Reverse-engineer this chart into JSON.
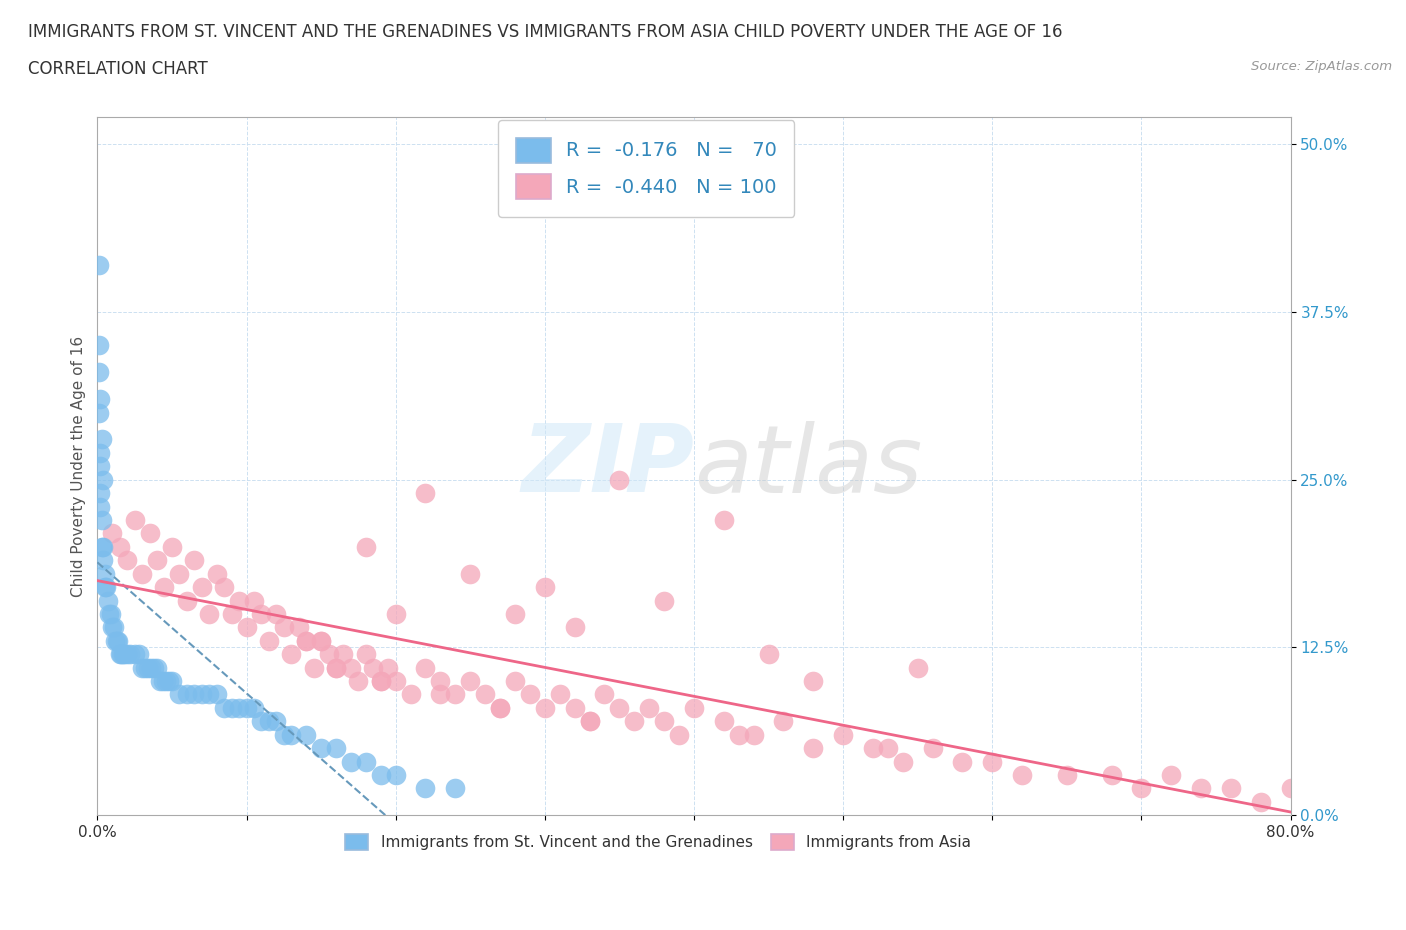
{
  "title_line1": "IMMIGRANTS FROM ST. VINCENT AND THE GRENADINES VS IMMIGRANTS FROM ASIA CHILD POVERTY UNDER THE AGE OF 16",
  "title_line2": "CORRELATION CHART",
  "source_text": "Source: ZipAtlas.com",
  "ylabel": "Child Poverty Under the Age of 16",
  "xlim": [
    0.0,
    0.8
  ],
  "ylim": [
    0.0,
    0.52
  ],
  "xticks": [
    0.0,
    0.1,
    0.2,
    0.3,
    0.4,
    0.5,
    0.6,
    0.7,
    0.8
  ],
  "xticklabels": [
    "0.0%",
    "",
    "",
    "",
    "",
    "",
    "",
    "",
    "80.0%"
  ],
  "yticks": [
    0.0,
    0.125,
    0.25,
    0.375,
    0.5
  ],
  "yticklabels": [
    "0.0%",
    "12.5%",
    "25.0%",
    "37.5%",
    "50.0%"
  ],
  "watermark_1": "ZIP",
  "watermark_2": "atlas",
  "legend_r1": "R =  -0.176   N =   70",
  "legend_r2": "R =  -0.440   N = 100",
  "color_blue": "#7bbcec",
  "color_pink": "#f4a7b9",
  "color_blue_line": "#6699bb",
  "color_pink_line": "#ee6688",
  "background_color": "#ffffff",
  "sv_scatter_x": [
    0.001,
    0.001,
    0.001,
    0.002,
    0.002,
    0.002,
    0.002,
    0.003,
    0.003,
    0.004,
    0.004,
    0.005,
    0.005,
    0.006,
    0.007,
    0.008,
    0.009,
    0.01,
    0.011,
    0.012,
    0.013,
    0.014,
    0.015,
    0.016,
    0.017,
    0.018,
    0.02,
    0.022,
    0.025,
    0.028,
    0.03,
    0.032,
    0.034,
    0.036,
    0.038,
    0.04,
    0.042,
    0.044,
    0.046,
    0.048,
    0.05,
    0.055,
    0.06,
    0.065,
    0.07,
    0.075,
    0.08,
    0.085,
    0.09,
    0.095,
    0.1,
    0.105,
    0.11,
    0.115,
    0.12,
    0.125,
    0.13,
    0.14,
    0.15,
    0.16,
    0.17,
    0.18,
    0.19,
    0.2,
    0.22,
    0.24,
    0.001,
    0.002,
    0.003,
    0.004
  ],
  "sv_scatter_y": [
    0.41,
    0.33,
    0.3,
    0.27,
    0.26,
    0.24,
    0.23,
    0.22,
    0.2,
    0.2,
    0.19,
    0.18,
    0.17,
    0.17,
    0.16,
    0.15,
    0.15,
    0.14,
    0.14,
    0.13,
    0.13,
    0.13,
    0.12,
    0.12,
    0.12,
    0.12,
    0.12,
    0.12,
    0.12,
    0.12,
    0.11,
    0.11,
    0.11,
    0.11,
    0.11,
    0.11,
    0.1,
    0.1,
    0.1,
    0.1,
    0.1,
    0.09,
    0.09,
    0.09,
    0.09,
    0.09,
    0.09,
    0.08,
    0.08,
    0.08,
    0.08,
    0.08,
    0.07,
    0.07,
    0.07,
    0.06,
    0.06,
    0.06,
    0.05,
    0.05,
    0.04,
    0.04,
    0.03,
    0.03,
    0.02,
    0.02,
    0.35,
    0.31,
    0.28,
    0.25
  ],
  "asia_scatter_x": [
    0.01,
    0.015,
    0.02,
    0.025,
    0.03,
    0.035,
    0.04,
    0.045,
    0.05,
    0.055,
    0.06,
    0.065,
    0.07,
    0.075,
    0.08,
    0.085,
    0.09,
    0.095,
    0.1,
    0.105,
    0.11,
    0.115,
    0.12,
    0.125,
    0.13,
    0.135,
    0.14,
    0.145,
    0.15,
    0.155,
    0.16,
    0.165,
    0.17,
    0.175,
    0.18,
    0.185,
    0.19,
    0.195,
    0.2,
    0.21,
    0.22,
    0.23,
    0.24,
    0.25,
    0.26,
    0.27,
    0.28,
    0.29,
    0.3,
    0.31,
    0.32,
    0.33,
    0.34,
    0.35,
    0.36,
    0.37,
    0.38,
    0.39,
    0.4,
    0.42,
    0.44,
    0.46,
    0.48,
    0.5,
    0.52,
    0.54,
    0.56,
    0.58,
    0.6,
    0.62,
    0.65,
    0.68,
    0.7,
    0.72,
    0.74,
    0.76,
    0.78,
    0.8,
    0.35,
    0.22,
    0.18,
    0.42,
    0.25,
    0.3,
    0.38,
    0.28,
    0.32,
    0.15,
    0.2,
    0.45,
    0.55,
    0.48,
    0.14,
    0.16,
    0.19,
    0.23,
    0.27,
    0.33,
    0.43,
    0.53
  ],
  "asia_scatter_y": [
    0.21,
    0.2,
    0.19,
    0.22,
    0.18,
    0.21,
    0.19,
    0.17,
    0.2,
    0.18,
    0.16,
    0.19,
    0.17,
    0.15,
    0.18,
    0.17,
    0.15,
    0.16,
    0.14,
    0.16,
    0.15,
    0.13,
    0.15,
    0.14,
    0.12,
    0.14,
    0.13,
    0.11,
    0.13,
    0.12,
    0.11,
    0.12,
    0.11,
    0.1,
    0.12,
    0.11,
    0.1,
    0.11,
    0.1,
    0.09,
    0.11,
    0.1,
    0.09,
    0.1,
    0.09,
    0.08,
    0.1,
    0.09,
    0.08,
    0.09,
    0.08,
    0.07,
    0.09,
    0.08,
    0.07,
    0.08,
    0.07,
    0.06,
    0.08,
    0.07,
    0.06,
    0.07,
    0.05,
    0.06,
    0.05,
    0.04,
    0.05,
    0.04,
    0.04,
    0.03,
    0.03,
    0.03,
    0.02,
    0.03,
    0.02,
    0.02,
    0.01,
    0.02,
    0.25,
    0.24,
    0.2,
    0.22,
    0.18,
    0.17,
    0.16,
    0.15,
    0.14,
    0.13,
    0.15,
    0.12,
    0.11,
    0.1,
    0.13,
    0.11,
    0.1,
    0.09,
    0.08,
    0.07,
    0.06,
    0.05
  ]
}
